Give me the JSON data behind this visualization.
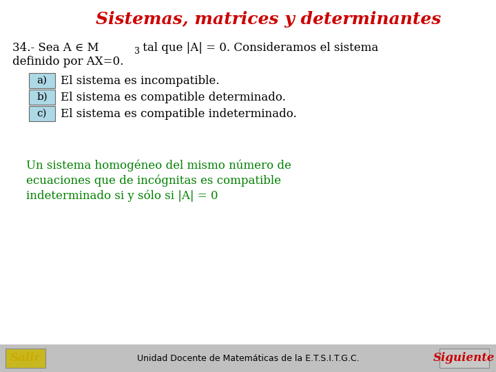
{
  "title": "Sistemas, matrices y determinantes",
  "title_color": "#CC0000",
  "bg_color": "#FFFFFF",
  "footer_bg": "#C0C0C0",
  "main_text_line1a": "34.- Sea A ∈ M",
  "main_text_line1b": "3",
  "main_text_line1c": " tal que |A| = 0. Consideramos el sistema",
  "main_text_line2": "definido por AX=0.",
  "options": [
    {
      "label": "a)",
      "text": "El sistema es incompatible."
    },
    {
      "label": "b)",
      "text": "El sistema es compatible determinado."
    },
    {
      "label": "c)",
      "text": "El sistema es compatible indeterminado."
    }
  ],
  "option_box_color": "#ADD8E6",
  "option_box_edge": "#666666",
  "green_text_lines": [
    "Un sistema homogéneo del mismo número de",
    "ecuaciones que de incógnitas es compatible",
    "indeterminado si y sólo si |A| = 0"
  ],
  "green_color": "#008000",
  "footer_left": "Salir",
  "footer_left_color": "#CCAA00",
  "footer_left_bg": "#C8B820",
  "footer_center": "Unidad Docente de Matemáticas de la E.T.S.I.T.G.C.",
  "footer_right": "Siguiente",
  "footer_right_color": "#CC0000",
  "footer_right_bg": "#C8C8C8"
}
